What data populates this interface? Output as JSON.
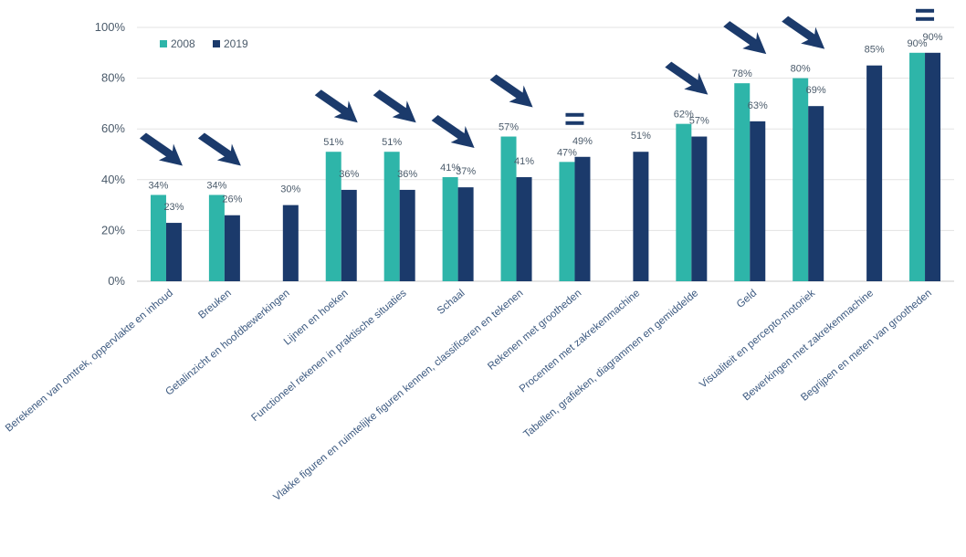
{
  "chart_data": {
    "type": "bar",
    "title": "",
    "xlabel": "",
    "ylabel": "",
    "ylim": [
      0,
      100
    ],
    "yticks": [
      "0%",
      "20%",
      "40%",
      "60%",
      "80%",
      "100%"
    ],
    "grid": true,
    "legend_position": "top-left",
    "categories": [
      "Berekenen van omtrek, oppervlakte en inhoud",
      "Breuken",
      "Getalinzicht en hoofdbewerkingen",
      "Lijnen en hoeken",
      "Functioneel rekenen in praktische situaties",
      "Schaal",
      "Vlakke figuren en ruimtelijke figuren kennen, classificeren en tekenen",
      "Rekenen met grootheden",
      "Procenten met zakrekenmachine",
      "Tabellen, grafieken, diagrammen en gemiddelde",
      "Geld",
      "Visualiteit en percepto-motoriek",
      "Bewerkingen met zakrekenmachine",
      "Begrijpen en meten van grootheden"
    ],
    "series": [
      {
        "name": "2008",
        "color": "#2eb5a9",
        "values": [
          34,
          34,
          null,
          51,
          51,
          41,
          57,
          47,
          null,
          62,
          78,
          80,
          null,
          90
        ],
        "labels": [
          "34%",
          "34%",
          "",
          "51%",
          "51%",
          "41%",
          "57%",
          "47%",
          "",
          "62%",
          "78%",
          "80%",
          "",
          "90%"
        ]
      },
      {
        "name": "2019",
        "color": "#1b3a6b",
        "values": [
          23,
          26,
          30,
          36,
          36,
          37,
          41,
          49,
          51,
          57,
          63,
          69,
          85,
          90
        ],
        "labels": [
          "23%",
          "26%",
          "30%",
          "36%",
          "36%",
          "37%",
          "41%",
          "49%",
          "51%",
          "57%",
          "63%",
          "69%",
          "85%",
          "90%"
        ]
      }
    ],
    "annotations": [
      {
        "category_index": 0,
        "symbol": "down-arrow"
      },
      {
        "category_index": 1,
        "symbol": "down-arrow"
      },
      {
        "category_index": 3,
        "symbol": "down-arrow"
      },
      {
        "category_index": 4,
        "symbol": "down-arrow"
      },
      {
        "category_index": 5,
        "symbol": "down-arrow"
      },
      {
        "category_index": 6,
        "symbol": "down-arrow"
      },
      {
        "category_index": 7,
        "symbol": "equal"
      },
      {
        "category_index": 9,
        "symbol": "down-arrow"
      },
      {
        "category_index": 10,
        "symbol": "down-arrow"
      },
      {
        "category_index": 11,
        "symbol": "down-arrow"
      },
      {
        "category_index": 13,
        "symbol": "equal"
      }
    ],
    "annotation_color": "#1b3a6b"
  }
}
